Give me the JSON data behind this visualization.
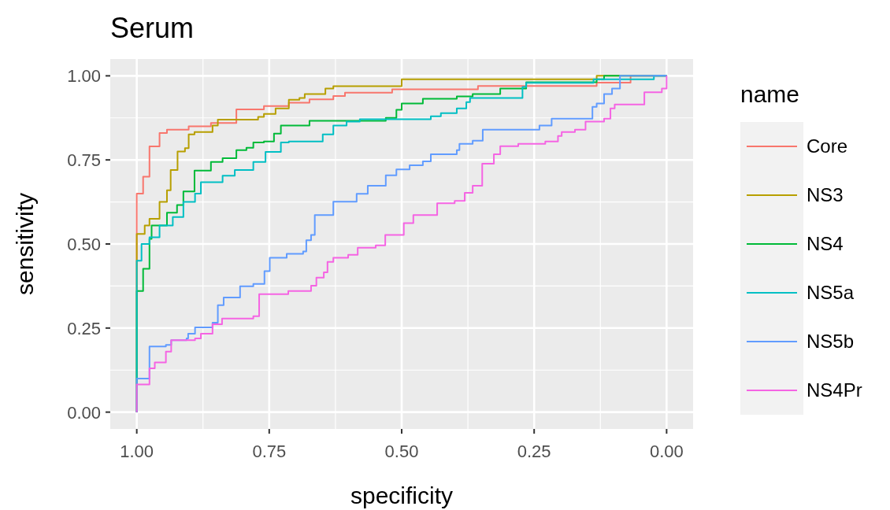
{
  "chart_data": {
    "type": "step",
    "title": "Serum",
    "xlabel": "specificity",
    "ylabel": "sensitivity",
    "legend_title": "name",
    "legend": "right",
    "grid": true,
    "xlim": [
      1.05,
      -0.05
    ],
    "ylim": [
      -0.05,
      1.05
    ],
    "xticks": [
      {
        "value": 1,
        "label": "1.00"
      },
      {
        "value": 0.75,
        "label": "0.75"
      },
      {
        "value": 0.5,
        "label": "0.50"
      },
      {
        "value": 0.25,
        "label": "0.25"
      },
      {
        "value": 0,
        "label": "0.00"
      }
    ],
    "yticks": [
      {
        "value": 0,
        "label": "0.00"
      },
      {
        "value": 0.25,
        "label": "0.25"
      },
      {
        "value": 0.5,
        "label": "0.50"
      },
      {
        "value": 0.75,
        "label": "0.75"
      },
      {
        "value": 1,
        "label": "1.00"
      }
    ],
    "series": [
      {
        "name": "Core",
        "color": "#f8766d",
        "x": [
          1,
          0.988,
          0.976,
          0.957,
          0.943,
          0.902,
          0.86,
          0.812,
          0.76,
          0.713,
          0.674,
          0.629,
          0.607,
          0.518,
          0.356,
          0.132,
          0.068,
          0
        ],
        "values": [
          0,
          0.65,
          0.7,
          0.79,
          0.83,
          0.84,
          0.85,
          0.86,
          0.9,
          0.91,
          0.92,
          0.93,
          0.94,
          0.95,
          0.96,
          0.97,
          0.98,
          1
        ]
      },
      {
        "name": "NS3",
        "color": "#b79f00",
        "x": [
          1,
          0.985,
          0.976,
          0.957,
          0.943,
          0.936,
          0.923,
          0.909,
          0.902,
          0.891,
          0.857,
          0.847,
          0.771,
          0.76,
          0.738,
          0.713,
          0.693,
          0.683,
          0.644,
          0.629,
          0.5,
          0.132,
          0
        ],
        "values": [
          0,
          0.53,
          0.555,
          0.575,
          0.625,
          0.66,
          0.72,
          0.775,
          0.785,
          0.826,
          0.833,
          0.852,
          0.87,
          0.878,
          0.887,
          0.903,
          0.929,
          0.934,
          0.946,
          0.962,
          0.969,
          0.99,
          1
        ]
      },
      {
        "name": "NS4",
        "color": "#00ba38",
        "x": [
          1,
          0.988,
          0.976,
          0.972,
          0.943,
          0.924,
          0.912,
          0.891,
          0.86,
          0.838,
          0.812,
          0.793,
          0.78,
          0.76,
          0.741,
          0.728,
          0.674,
          0.53,
          0.51,
          0.5,
          0.46,
          0.396,
          0.366,
          0.314,
          0.265,
          0.132,
          0.118,
          0
        ],
        "values": [
          0,
          0.36,
          0.426,
          0.515,
          0.555,
          0.593,
          0.616,
          0.656,
          0.718,
          0.744,
          0.755,
          0.779,
          0.786,
          0.802,
          0.805,
          0.828,
          0.852,
          0.866,
          0.875,
          0.899,
          0.918,
          0.932,
          0.939,
          0.946,
          0.962,
          0.981,
          0.99,
          1
        ]
      },
      {
        "name": "NS5a",
        "color": "#00bfc4",
        "x": [
          1,
          0.991,
          0.976,
          0.957,
          0.932,
          0.912,
          0.89,
          0.879,
          0.838,
          0.815,
          0.78,
          0.757,
          0.728,
          0.713,
          0.649,
          0.629,
          0.604,
          0.579,
          0.445,
          0.426,
          0.396,
          0.378,
          0.371,
          0.272,
          0.265,
          0.138,
          0.024,
          0
        ],
        "values": [
          0,
          0.45,
          0.5,
          0.52,
          0.555,
          0.58,
          0.625,
          0.65,
          0.684,
          0.703,
          0.72,
          0.744,
          0.774,
          0.802,
          0.805,
          0.826,
          0.852,
          0.864,
          0.871,
          0.88,
          0.889,
          0.903,
          0.922,
          0.934,
          0.967,
          0.979,
          0.99,
          1
        ]
      },
      {
        "name": "NS5b",
        "color": "#619cff",
        "x": [
          1,
          0.976,
          0.945,
          0.935,
          0.906,
          0.903,
          0.89,
          0.857,
          0.847,
          0.836,
          0.805,
          0.78,
          0.759,
          0.749,
          0.717,
          0.686,
          0.68,
          0.671,
          0.664,
          0.629,
          0.585,
          0.564,
          0.53,
          0.51,
          0.485,
          0.46,
          0.445,
          0.396,
          0.391,
          0.366,
          0.347,
          0.24,
          0.217,
          0.14,
          0.132,
          0.118,
          0.103,
          0.088,
          0
        ],
        "values": [
          0,
          0.1,
          0.195,
          0.2,
          0.214,
          0.219,
          0.233,
          0.252,
          0.266,
          0.318,
          0.341,
          0.374,
          0.381,
          0.419,
          0.459,
          0.471,
          0.478,
          0.511,
          0.527,
          0.586,
          0.626,
          0.649,
          0.673,
          0.704,
          0.722,
          0.734,
          0.746,
          0.767,
          0.779,
          0.798,
          0.807,
          0.84,
          0.852,
          0.873,
          0.908,
          0.918,
          0.946,
          0.962,
          1
        ]
      },
      {
        "name": "NS4Pr",
        "color": "#f564e3",
        "x": [
          1,
          0.976,
          0.966,
          0.945,
          0.935,
          0.89,
          0.879,
          0.857,
          0.839,
          0.78,
          0.769,
          0.714,
          0.671,
          0.661,
          0.647,
          0.64,
          0.629,
          0.601,
          0.583,
          0.549,
          0.531,
          0.496,
          0.478,
          0.433,
          0.4,
          0.381,
          0.366,
          0.348,
          0.326,
          0.314,
          0.28,
          0.229,
          0.205,
          0.198,
          0.173,
          0.153,
          0.118,
          0.106,
          0.098,
          0.042,
          0.009,
          0,
          0
        ],
        "values": [
          0,
          0.082,
          0.13,
          0.148,
          0.18,
          0.214,
          0.219,
          0.233,
          0.261,
          0.278,
          0.285,
          0.351,
          0.36,
          0.376,
          0.4,
          0.416,
          0.447,
          0.459,
          0.468,
          0.489,
          0.496,
          0.527,
          0.562,
          0.586,
          0.621,
          0.628,
          0.652,
          0.673,
          0.739,
          0.767,
          0.791,
          0.798,
          0.805,
          0.821,
          0.833,
          0.84,
          0.864,
          0.873,
          0.903,
          0.915,
          0.951,
          0.962,
          1
        ]
      }
    ]
  }
}
